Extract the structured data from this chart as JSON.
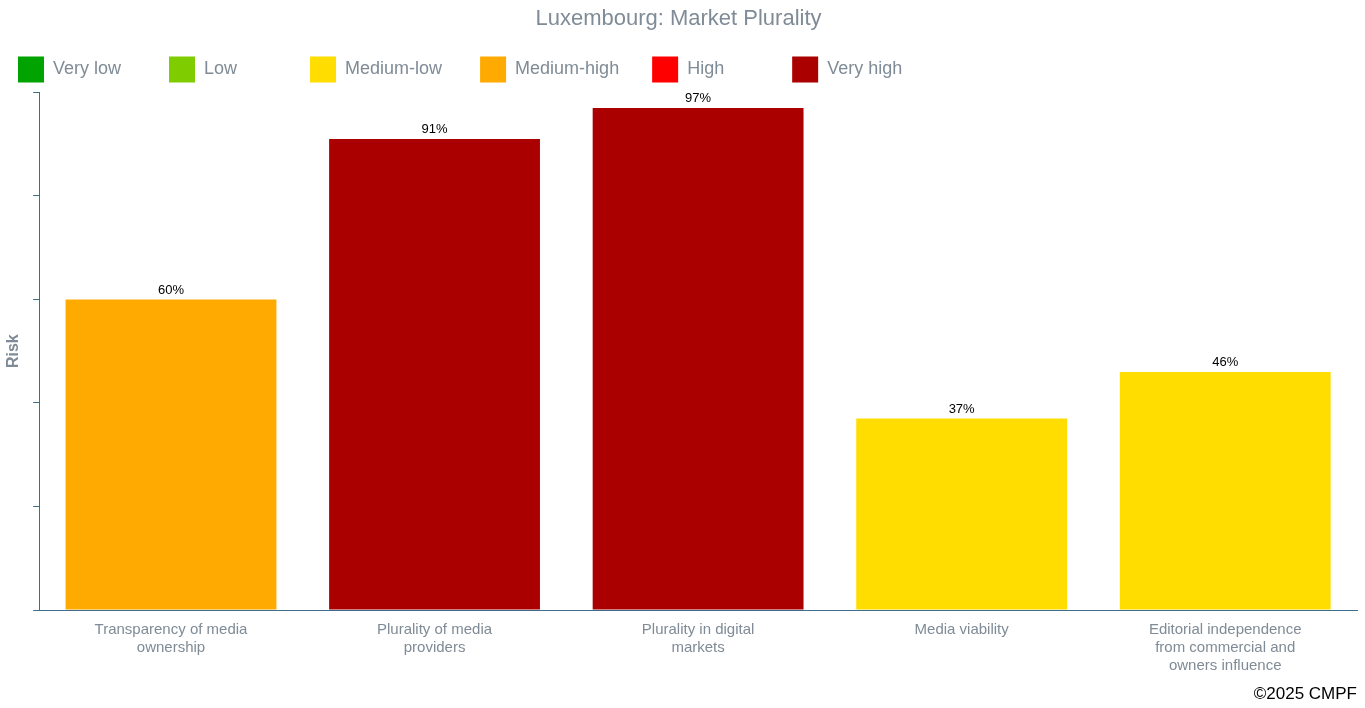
{
  "chart_data": {
    "type": "bar",
    "title": "Luxembourg: Market Plurality",
    "ylabel": "Risk",
    "categories": [
      "Transparency of media ownership",
      "Plurality of media providers",
      "Plurality in digital markets",
      "Media viability",
      "Editorial independence from commercial and owners influence"
    ],
    "stacked": true,
    "series": [
      {
        "name": "Very low",
        "color": "#00a300",
        "values": [
          null,
          null,
          null,
          null,
          null
        ],
        "value_labels": [
          null,
          null,
          null,
          null,
          null
        ]
      },
      {
        "name": "Low",
        "color": "#7fcc00",
        "values": [
          null,
          null,
          null,
          null,
          null
        ],
        "value_labels": [
          null,
          null,
          null,
          null,
          null
        ]
      },
      {
        "name": "Medium-low",
        "color": "#ffdd00",
        "values": [
          null,
          null,
          null,
          37,
          46
        ],
        "value_labels": [
          null,
          null,
          null,
          "37%",
          "46%"
        ]
      },
      {
        "name": "Medium-high",
        "color": "#ffaa00",
        "values": [
          60,
          null,
          null,
          null,
          null
        ],
        "value_labels": [
          "60%",
          null,
          null,
          null,
          null
        ]
      },
      {
        "name": "High",
        "color": "#ff0000",
        "values": [
          null,
          null,
          null,
          null,
          null
        ],
        "value_labels": [
          null,
          null,
          null,
          null,
          null
        ]
      },
      {
        "name": "Very high",
        "color": "#aa0000",
        "values": [
          null,
          91,
          97,
          null,
          null
        ],
        "value_labels": [
          null,
          "91%",
          "97%",
          null,
          null
        ]
      }
    ],
    "ylim": [
      0,
      100
    ],
    "yticks": [
      {
        "value": 0,
        "label": null
      },
      {
        "value": 20,
        "label": null
      },
      {
        "value": 40,
        "label": null
      },
      {
        "value": 60,
        "label": null
      },
      {
        "value": 80,
        "label": null
      },
      {
        "value": 100,
        "label": null
      }
    ],
    "tick_labels": "x",
    "grid": false,
    "legend": "top",
    "annotations": [
      "©2025 CMPF"
    ]
  }
}
